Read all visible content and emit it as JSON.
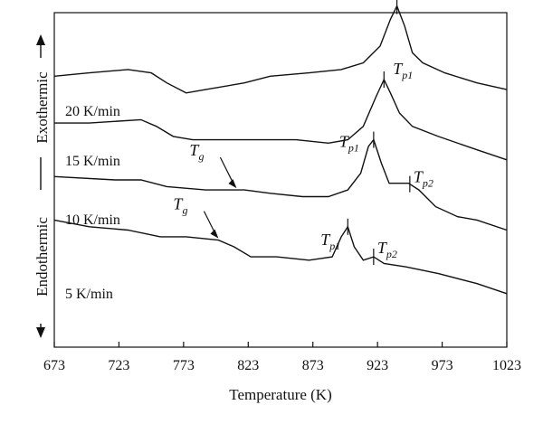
{
  "chart_data": {
    "type": "line",
    "xlabel": "Temperature (K)",
    "xlim": [
      673,
      1023
    ],
    "xticks": [
      673,
      723,
      773,
      823,
      873,
      923,
      973,
      1023
    ],
    "y_axis_labels": {
      "top": "Exothermic",
      "bottom": "Endothermic"
    },
    "series": [
      {
        "name": "20 K/min",
        "points": [
          [
            673,
            0.81
          ],
          [
            700,
            0.82
          ],
          [
            730,
            0.83
          ],
          [
            748,
            0.82
          ],
          [
            760,
            0.79
          ],
          [
            775,
            0.76
          ],
          [
            790,
            0.77
          ],
          [
            820,
            0.79
          ],
          [
            840,
            0.81
          ],
          [
            870,
            0.82
          ],
          [
            895,
            0.83
          ],
          [
            912,
            0.85
          ],
          [
            925,
            0.9
          ],
          [
            933,
            0.98
          ],
          [
            938,
            1.02
          ],
          [
            944,
            0.96
          ],
          [
            950,
            0.88
          ],
          [
            958,
            0.85
          ],
          [
            975,
            0.82
          ],
          [
            1000,
            0.79
          ],
          [
            1023,
            0.77
          ]
        ],
        "annotations": [
          {
            "text": "T",
            "sub": "p1",
            "x": 938
          }
        ]
      },
      {
        "name": "15 K/min",
        "points": [
          [
            673,
            0.67
          ],
          [
            700,
            0.67
          ],
          [
            740,
            0.68
          ],
          [
            752,
            0.66
          ],
          [
            765,
            0.63
          ],
          [
            780,
            0.62
          ],
          [
            820,
            0.62
          ],
          [
            860,
            0.62
          ],
          [
            885,
            0.61
          ],
          [
            900,
            0.62
          ],
          [
            912,
            0.66
          ],
          [
            922,
            0.75
          ],
          [
            928,
            0.8
          ],
          [
            933,
            0.76
          ],
          [
            940,
            0.7
          ],
          [
            950,
            0.66
          ],
          [
            970,
            0.63
          ],
          [
            1000,
            0.59
          ],
          [
            1023,
            0.56
          ]
        ],
        "annotations": [
          {
            "text": "T",
            "sub": "p1",
            "x": 928
          }
        ]
      },
      {
        "name": "10 K/min",
        "points": [
          [
            673,
            0.51
          ],
          [
            720,
            0.5
          ],
          [
            740,
            0.5
          ],
          [
            760,
            0.48
          ],
          [
            790,
            0.47
          ],
          [
            820,
            0.47
          ],
          [
            840,
            0.46
          ],
          [
            865,
            0.45
          ],
          [
            885,
            0.45
          ],
          [
            900,
            0.47
          ],
          [
            910,
            0.52
          ],
          [
            916,
            0.6
          ],
          [
            920,
            0.62
          ],
          [
            926,
            0.55
          ],
          [
            932,
            0.49
          ],
          [
            940,
            0.49
          ],
          [
            947,
            0.49
          ],
          [
            955,
            0.47
          ],
          [
            968,
            0.42
          ],
          [
            985,
            0.39
          ],
          [
            1000,
            0.38
          ],
          [
            1023,
            0.35
          ]
        ],
        "annotations": [
          {
            "text": "T",
            "sub": "g",
            "x": 814
          },
          {
            "text": "T",
            "sub": "p1",
            "x": 920
          },
          {
            "text": "T",
            "sub": "p2",
            "x": 948
          }
        ]
      },
      {
        "name": "5 K/min",
        "points": [
          [
            673,
            0.38
          ],
          [
            700,
            0.36
          ],
          [
            730,
            0.35
          ],
          [
            755,
            0.33
          ],
          [
            775,
            0.33
          ],
          [
            800,
            0.32
          ],
          [
            812,
            0.3
          ],
          [
            825,
            0.27
          ],
          [
            845,
            0.27
          ],
          [
            870,
            0.26
          ],
          [
            888,
            0.27
          ],
          [
            895,
            0.33
          ],
          [
            900,
            0.36
          ],
          [
            905,
            0.3
          ],
          [
            912,
            0.26
          ],
          [
            920,
            0.27
          ],
          [
            928,
            0.25
          ],
          [
            945,
            0.24
          ],
          [
            970,
            0.22
          ],
          [
            1000,
            0.19
          ],
          [
            1023,
            0.16
          ]
        ],
        "annotations": [
          {
            "text": "T",
            "sub": "g",
            "x": 800
          },
          {
            "text": "T",
            "sub": "p1",
            "x": 900
          },
          {
            "text": "T",
            "sub": "p2",
            "x": 920
          }
        ]
      }
    ]
  }
}
